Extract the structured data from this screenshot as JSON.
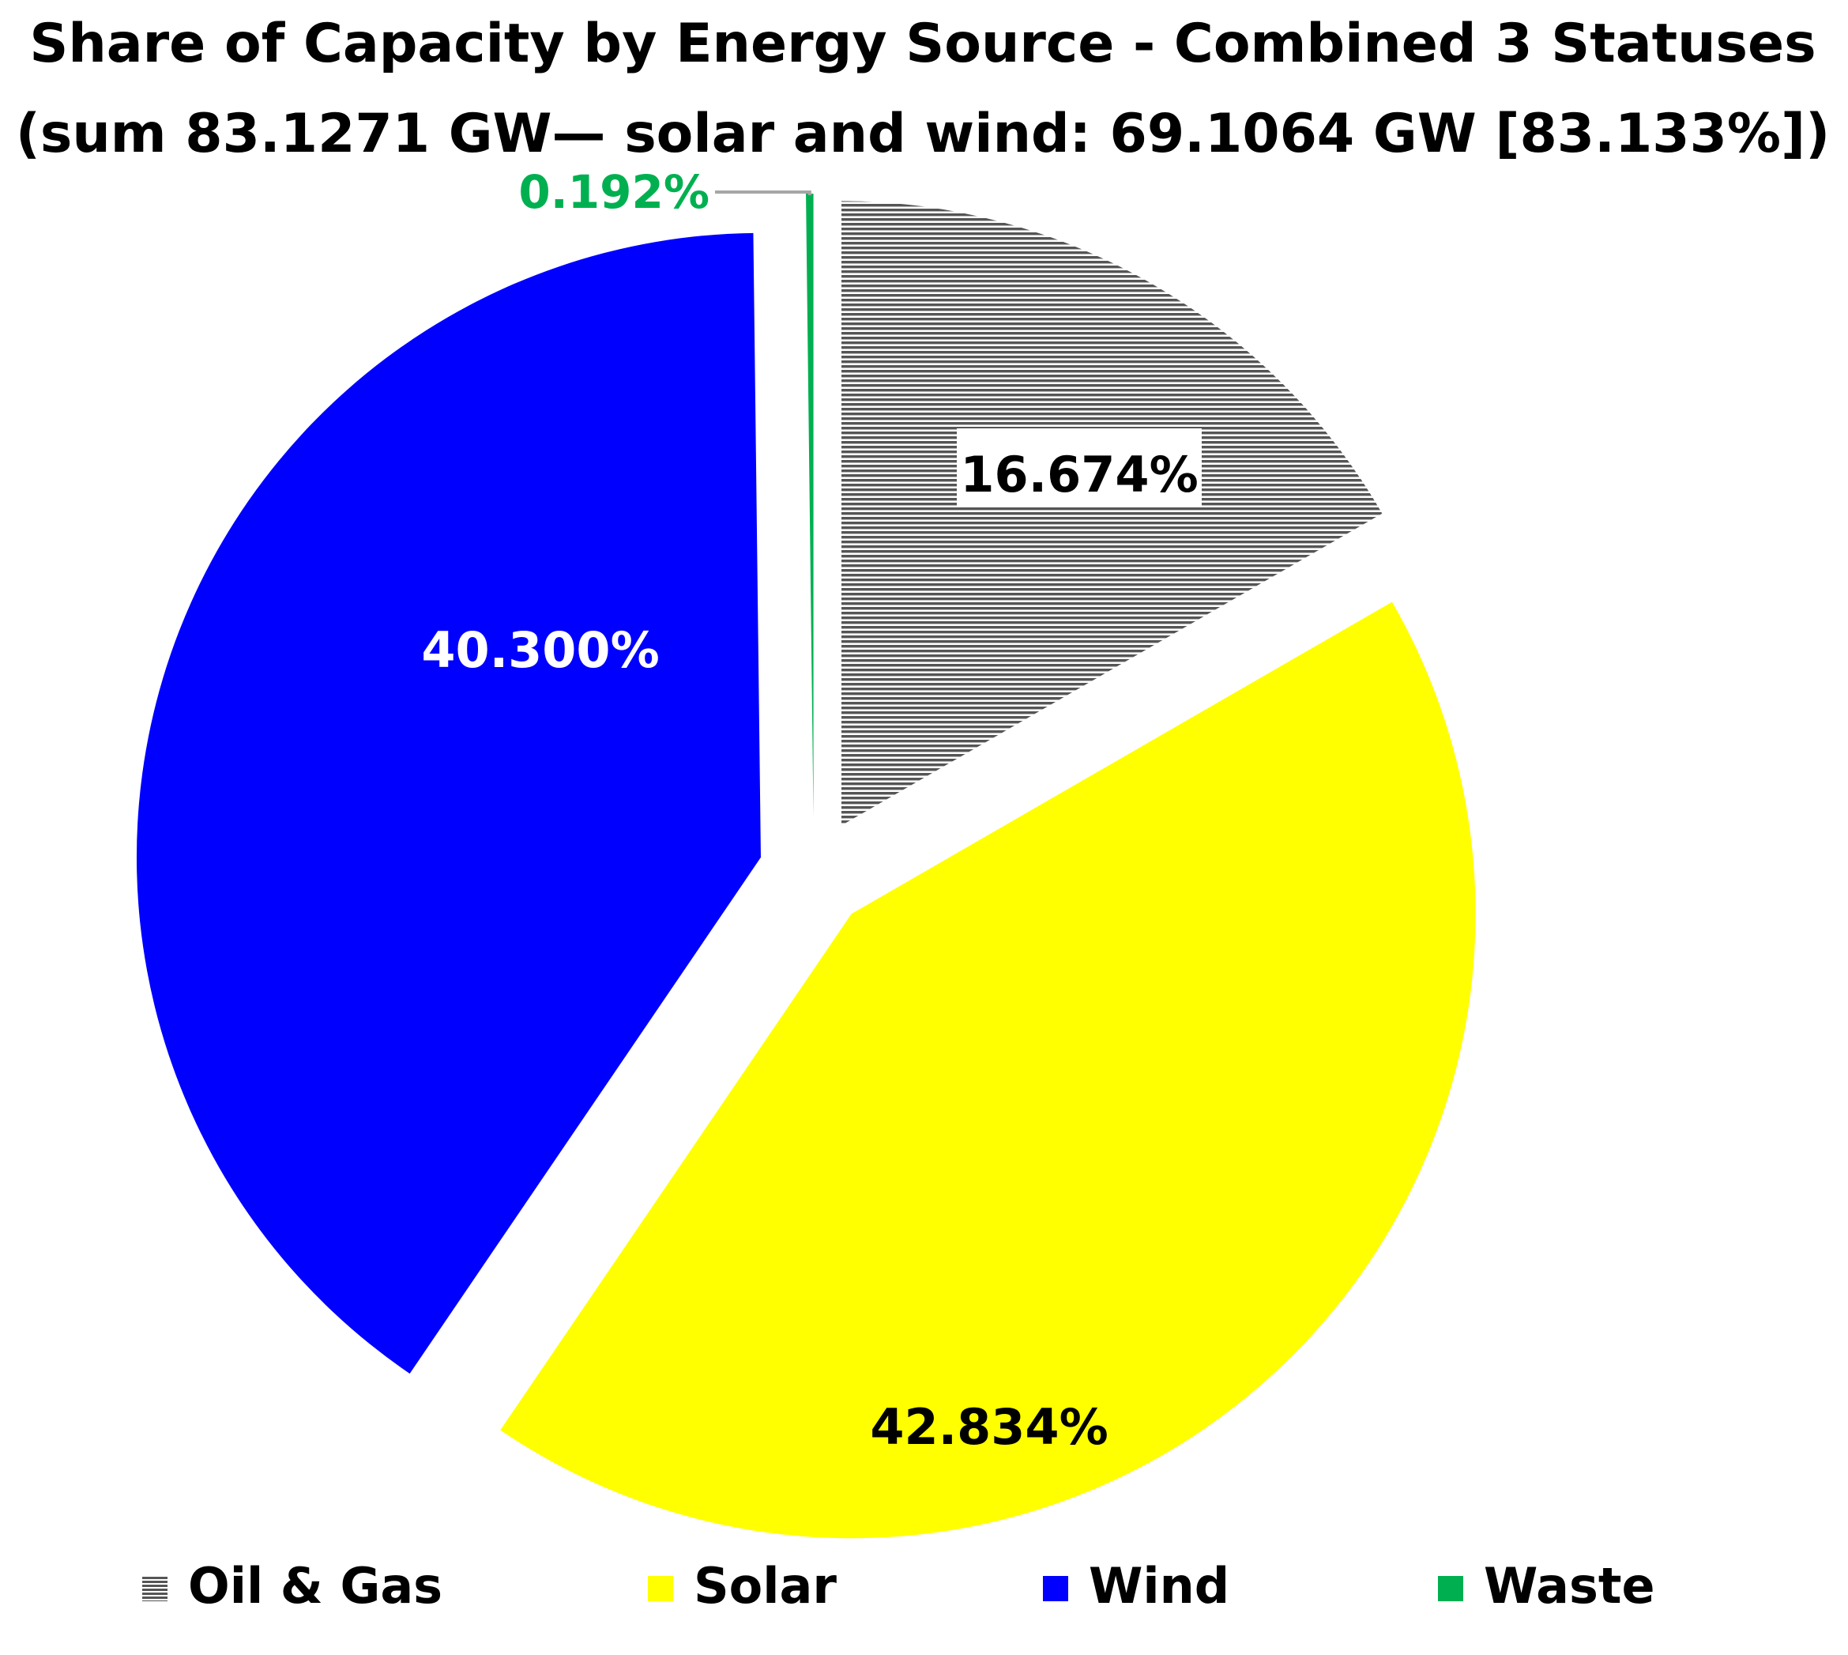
{
  "chart_data": {
    "type": "pie",
    "title": "Share of Capacity by Energy Source - Combined 3 Statuses",
    "subtitle": "(sum 83.1271 GW— solar and wind: 69.1064 GW [83.133%])",
    "slices": [
      {
        "name": "Oil & Gas",
        "value": 16.674,
        "label": "16.674%",
        "color": "#808080",
        "pattern": "horizontal-lines",
        "label_color": "#000000"
      },
      {
        "name": "Solar",
        "value": 42.834,
        "label": "42.834%",
        "color": "#FFFF00",
        "label_color": "#000000"
      },
      {
        "name": "Wind",
        "value": 40.3,
        "label": "40.300%",
        "color": "#0000FF",
        "label_color": "#FFFFFF"
      },
      {
        "name": "Waste",
        "value": 0.192,
        "label": "0.192%",
        "color": "#00B050",
        "label_color": "#00B050"
      }
    ],
    "legend": {
      "position": "bottom",
      "items": [
        "Oil & Gas",
        "Solar",
        "Wind",
        "Waste"
      ]
    }
  }
}
